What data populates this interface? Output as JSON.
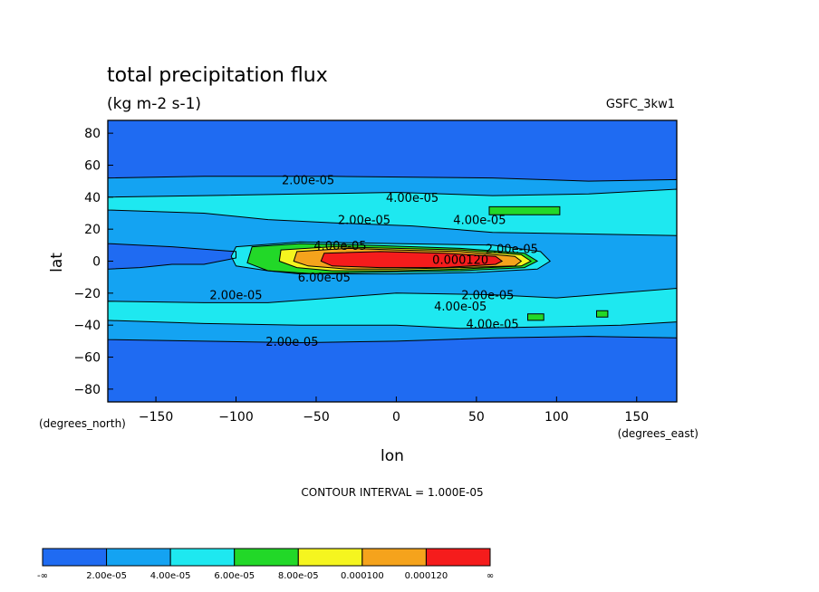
{
  "chart_data": {
    "type": "heatmap",
    "title": "total precipitation flux",
    "subtitle": "(kg m-2 s-1)",
    "dataset": "GSFC_3kw1",
    "xlabel": "lon",
    "ylabel": "lat",
    "x_units": "(degrees_east)",
    "y_units": "(degrees_north)",
    "xlim": [
      -180,
      175
    ],
    "ylim": [
      -88,
      88
    ],
    "x_ticks": [
      -150,
      -100,
      -50,
      0,
      50,
      100,
      150
    ],
    "y_ticks": [
      -80,
      -60,
      -40,
      -20,
      0,
      20,
      40,
      60,
      80
    ],
    "contour_interval_label": "CONTOUR INTERVAL = 1.000E-05",
    "levels": [
      2e-05,
      4e-05,
      6e-05,
      8e-05,
      0.0001,
      0.00012
    ],
    "colorbar": {
      "colors": [
        "#1f6bf2",
        "#14a3f2",
        "#1ee8f0",
        "#22d828",
        "#f5f51f",
        "#f5a31c",
        "#f51c1c"
      ],
      "labels": [
        "-∞",
        "2.00e-05",
        "4.00e-05",
        "6.00e-05",
        "8.00e-05",
        "0.000100",
        "0.000120",
        "∞"
      ]
    },
    "contour_labels": [
      {
        "text": "2.00e-05",
        "lon": -55,
        "lat": 51
      },
      {
        "text": "4.00e-05",
        "lon": 10,
        "lat": 40
      },
      {
        "text": "2.00e-05",
        "lon": -20,
        "lat": 26
      },
      {
        "text": "4.00e-05",
        "lon": 52,
        "lat": 26
      },
      {
        "text": "4.00e-05",
        "lon": -35,
        "lat": 10
      },
      {
        "text": "2.00e-05",
        "lon": 72,
        "lat": 8
      },
      {
        "text": "0.000120",
        "lon": 40,
        "lat": 1
      },
      {
        "text": "6.00e-05",
        "lon": -45,
        "lat": -10
      },
      {
        "text": "2.00e-05",
        "lon": -100,
        "lat": -21
      },
      {
        "text": "2.00e-05",
        "lon": 57,
        "lat": -21
      },
      {
        "text": "4.00e-05",
        "lon": 40,
        "lat": -28
      },
      {
        "text": "4.00e-05",
        "lon": 60,
        "lat": -39
      },
      {
        "text": "2.00e-05",
        "lon": -65,
        "lat": -50
      }
    ]
  }
}
